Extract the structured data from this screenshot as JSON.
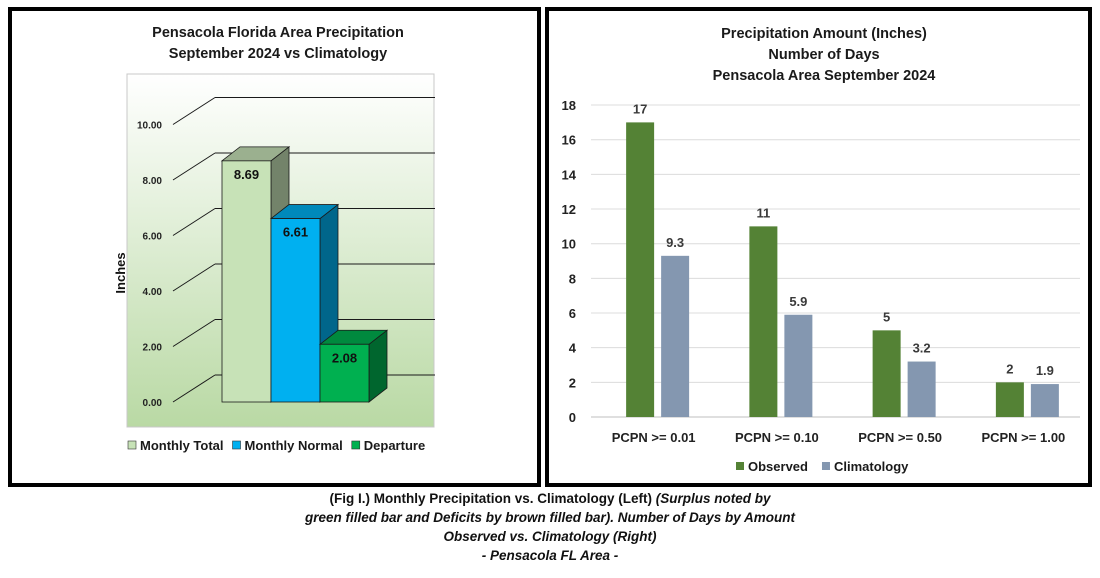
{
  "chart_data": [
    {
      "type": "bar",
      "title_lines": [
        "Pensacola Florida Area Precipitation",
        "September 2024 vs Climatology"
      ],
      "ylabel": "Inches",
      "ylim": [
        0,
        10
      ],
      "yticks": [
        "0.00",
        "2.00",
        "4.00",
        "6.00",
        "8.00",
        "10.00"
      ],
      "grid": true,
      "legend_position": "bottom",
      "bars": [
        {
          "name": "Monthly Total",
          "value": 8.69,
          "label": "8.69",
          "color": "#c7e2b7"
        },
        {
          "name": "Monthly Normal",
          "value": 6.61,
          "label": "6.61",
          "color": "#00b0f0"
        },
        {
          "name": "Departure",
          "value": 2.08,
          "label": "2.08",
          "color": "#00b050"
        }
      ]
    },
    {
      "type": "bar",
      "title_lines": [
        "Precipitation Amount (Inches)",
        "Number of Days",
        "Pensacola Area September 2024"
      ],
      "ylim": [
        0,
        18
      ],
      "yticks": [
        "0",
        "2",
        "4",
        "6",
        "8",
        "10",
        "12",
        "14",
        "16",
        "18"
      ],
      "grid": true,
      "legend_position": "bottom",
      "categories": [
        "PCPN >= 0.01",
        "PCPN >= 0.10",
        "PCPN >= 0.50",
        "PCPN >= 1.00"
      ],
      "series": [
        {
          "name": "Observed",
          "color": "#548235",
          "values": [
            17,
            11,
            5,
            2
          ],
          "labels": [
            "17",
            "11",
            "5",
            "2"
          ]
        },
        {
          "name": "Climatology",
          "color": "#8497b0",
          "values": [
            9.3,
            5.9,
            3.2,
            1.9
          ],
          "labels": [
            "9.3",
            "5.9",
            "3.2",
            "1.9"
          ]
        }
      ]
    }
  ],
  "caption": {
    "line1_normal": "(Fig I.) Monthly Precipitation vs. Climatology (Left) ",
    "line1_italic": "(Surplus noted by",
    "line2": "green filled bar and Deficits by brown filled bar). Number of Days by Amount",
    "line3": "Observed vs. Climatology (Right)",
    "line4": "- Pensacola FL Area -"
  }
}
